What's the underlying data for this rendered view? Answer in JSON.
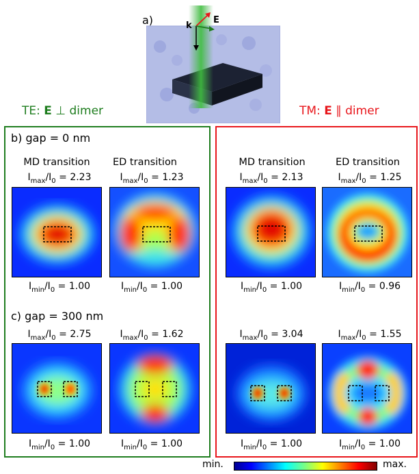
{
  "figure": {
    "panel_a_label": "a)",
    "k_label": "k",
    "e_label": "E",
    "te_header": {
      "prefix": "TE: ",
      "bold": "E",
      "suffix": " ⊥ dimer"
    },
    "tm_header": {
      "prefix": "TM: ",
      "bold": "E",
      "suffix": " ∥ dimer"
    },
    "row_b_label": "b) gap = 0 nm",
    "row_c_label": "c) gap = 300 nm",
    "col_md": "MD transition",
    "col_ed": "ED transition",
    "colorbar": {
      "min": "min.",
      "max": "max."
    },
    "colors": {
      "te": "#1e7d1e",
      "tm": "#e8161b"
    }
  },
  "maps": [
    {
      "id": "b-te-md",
      "max": "2.23",
      "min": "1.00"
    },
    {
      "id": "b-te-ed",
      "max": "1.23",
      "min": "1.00"
    },
    {
      "id": "b-tm-md",
      "max": "2.13",
      "min": "1.00"
    },
    {
      "id": "b-tm-ed",
      "max": "1.25",
      "min": "0.96"
    },
    {
      "id": "c-te-md",
      "max": "2.75",
      "min": "1.00"
    },
    {
      "id": "c-te-ed",
      "max": "1.62",
      "min": "1.00"
    },
    {
      "id": "c-tm-md",
      "max": "3.04",
      "min": "1.00"
    },
    {
      "id": "c-tm-ed",
      "max": "1.55",
      "min": "1.00"
    }
  ]
}
